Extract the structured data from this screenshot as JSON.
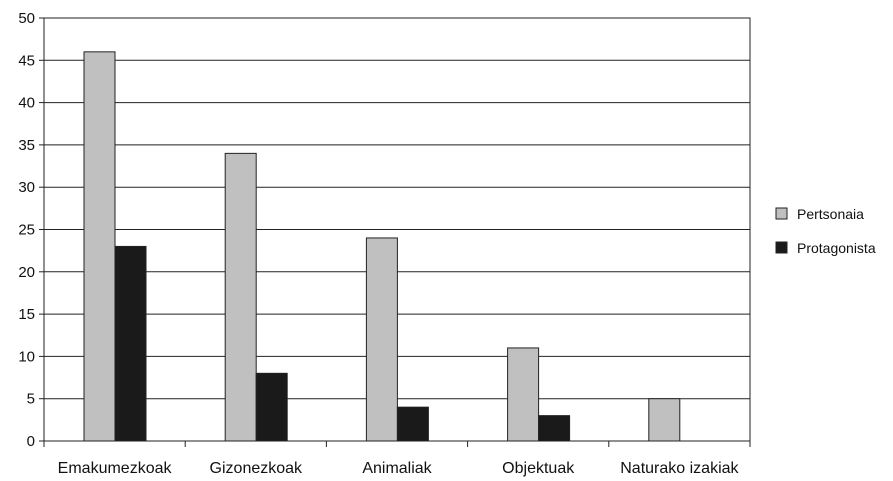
{
  "chart_data": {
    "type": "bar",
    "title": "",
    "xlabel": "",
    "ylabel": "",
    "categories": [
      "Emakumezkoak",
      "Gizonezkoak",
      "Animaliak",
      "Objektuak",
      "Naturako izakiak"
    ],
    "series": [
      {
        "name": "Pertsonaia",
        "values": [
          46,
          34,
          24,
          11,
          5
        ],
        "color": "#c0c0c0"
      },
      {
        "name": "Protagonista",
        "values": [
          23,
          8,
          4,
          3,
          0
        ],
        "color": "#1a1a1a"
      }
    ],
    "ylim": [
      0,
      50
    ],
    "yticks": [
      0,
      5,
      10,
      15,
      20,
      25,
      30,
      35,
      40,
      45,
      50
    ],
    "grid": true,
    "legend_position": "right"
  }
}
